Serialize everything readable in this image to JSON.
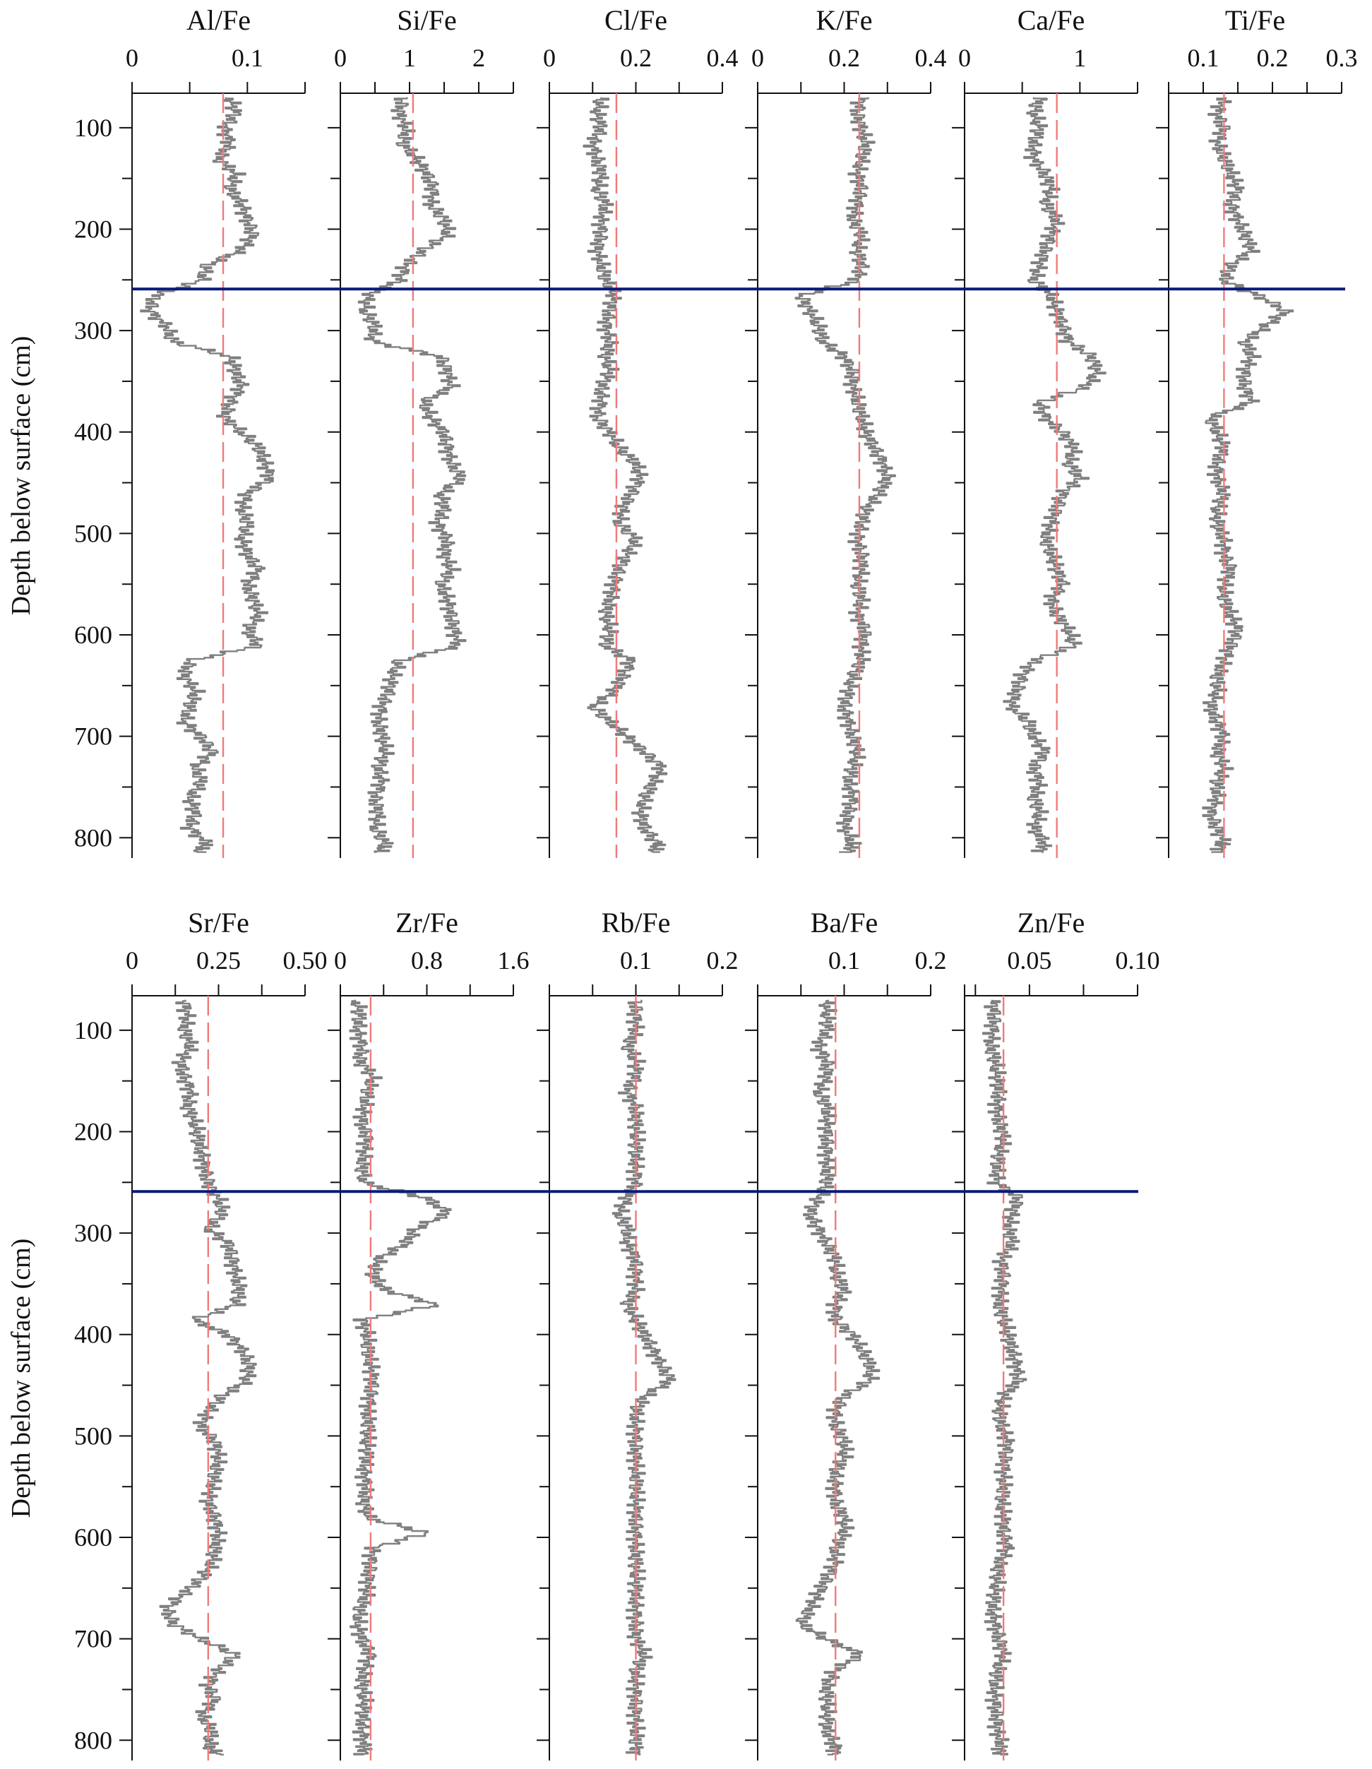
{
  "chart_data": {
    "type": "line",
    "title": "",
    "ylabel": "Depth below surface (cm)",
    "ylim": [
      66,
      820
    ],
    "y_ticks": [
      100,
      200,
      300,
      400,
      500,
      600,
      700,
      800
    ],
    "y_minor_step": 50,
    "boundary_depth_cm": 259,
    "grid": false,
    "legend": null,
    "depths": [
      70,
      85,
      100,
      115,
      130,
      145,
      160,
      175,
      190,
      205,
      220,
      235,
      250,
      265,
      280,
      295,
      310,
      325,
      340,
      355,
      370,
      385,
      400,
      415,
      430,
      445,
      460,
      475,
      490,
      505,
      520,
      535,
      550,
      565,
      580,
      595,
      610,
      625,
      640,
      655,
      670,
      685,
      700,
      715,
      730,
      745,
      760,
      775,
      790,
      805,
      815
    ],
    "rows": [
      {
        "panels": [
          {
            "name": "Al/Fe",
            "xlim": [
              0,
              0.15
            ],
            "ticks": [
              0,
              0.05,
              0.1,
              0.15
            ],
            "tick_labels": [
              "0",
              "",
              "0.1",
              ""
            ],
            "mean": 0.079,
            "values": [
              0.085,
              0.09,
              0.08,
              0.085,
              0.075,
              0.09,
              0.085,
              0.095,
              0.1,
              0.105,
              0.095,
              0.065,
              0.06,
              0.02,
              0.015,
              0.03,
              0.035,
              0.085,
              0.09,
              0.095,
              0.085,
              0.08,
              0.095,
              0.11,
              0.115,
              0.12,
              0.1,
              0.095,
              0.1,
              0.095,
              0.1,
              0.11,
              0.1,
              0.105,
              0.11,
              0.1,
              0.11,
              0.05,
              0.045,
              0.055,
              0.05,
              0.045,
              0.06,
              0.07,
              0.055,
              0.06,
              0.05,
              0.055,
              0.05,
              0.065,
              0.055
            ]
          },
          {
            "name": "Si/Fe",
            "xlim": [
              0,
              2.5
            ],
            "ticks": [
              0,
              0.5,
              1,
              1.5,
              2,
              2.5
            ],
            "tick_labels": [
              "0",
              "",
              "1",
              "",
              "2",
              ""
            ],
            "mean": 1.05,
            "values": [
              0.9,
              0.85,
              0.95,
              0.9,
              1.1,
              1.25,
              1.35,
              1.3,
              1.5,
              1.55,
              1.2,
              0.95,
              0.85,
              0.4,
              0.35,
              0.5,
              0.45,
              1.45,
              1.55,
              1.6,
              1.2,
              1.3,
              1.5,
              1.55,
              1.6,
              1.75,
              1.45,
              1.5,
              1.4,
              1.55,
              1.5,
              1.6,
              1.45,
              1.55,
              1.6,
              1.65,
              1.7,
              0.85,
              0.75,
              0.7,
              0.6,
              0.55,
              0.6,
              0.65,
              0.55,
              0.6,
              0.5,
              0.55,
              0.5,
              0.65,
              0.55
            ]
          },
          {
            "name": "Cl/Fe",
            "xlim": [
              0,
              0.4
            ],
            "ticks": [
              0,
              0.1,
              0.2,
              0.3,
              0.4
            ],
            "tick_labels": [
              "0",
              "",
              "0.2",
              "",
              "0.4"
            ],
            "mean": 0.155,
            "values": [
              0.12,
              0.11,
              0.12,
              0.1,
              0.11,
              0.12,
              0.11,
              0.13,
              0.12,
              0.12,
              0.11,
              0.12,
              0.13,
              0.15,
              0.14,
              0.13,
              0.14,
              0.13,
              0.14,
              0.12,
              0.12,
              0.11,
              0.14,
              0.16,
              0.2,
              0.21,
              0.19,
              0.17,
              0.16,
              0.2,
              0.18,
              0.16,
              0.15,
              0.14,
              0.13,
              0.14,
              0.13,
              0.19,
              0.17,
              0.15,
              0.1,
              0.14,
              0.18,
              0.22,
              0.26,
              0.24,
              0.22,
              0.21,
              0.22,
              0.25,
              0.24
            ]
          },
          {
            "name": "K/Fe",
            "xlim": [
              0,
              0.4
            ],
            "ticks": [
              0,
              0.1,
              0.2,
              0.3,
              0.4
            ],
            "tick_labels": [
              "0",
              "",
              "0.2",
              "",
              "0.4"
            ],
            "mean": 0.235,
            "values": [
              0.24,
              0.23,
              0.24,
              0.25,
              0.24,
              0.23,
              0.24,
              0.23,
              0.22,
              0.24,
              0.23,
              0.24,
              0.23,
              0.1,
              0.12,
              0.14,
              0.15,
              0.2,
              0.22,
              0.22,
              0.23,
              0.24,
              0.25,
              0.27,
              0.29,
              0.3,
              0.28,
              0.25,
              0.24,
              0.23,
              0.24,
              0.24,
              0.23,
              0.24,
              0.23,
              0.25,
              0.24,
              0.24,
              0.22,
              0.21,
              0.2,
              0.21,
              0.22,
              0.23,
              0.22,
              0.21,
              0.22,
              0.21,
              0.2,
              0.22,
              0.21
            ]
          },
          {
            "name": "Ca/Fe",
            "xlim": [
              0,
              1.5
            ],
            "ticks": [
              0,
              0.5,
              1,
              1.5
            ],
            "tick_labels": [
              "0",
              "",
              "1",
              ""
            ],
            "mean": 0.8,
            "values": [
              0.65,
              0.6,
              0.65,
              0.6,
              0.6,
              0.7,
              0.75,
              0.7,
              0.8,
              0.75,
              0.7,
              0.65,
              0.6,
              0.75,
              0.8,
              0.85,
              0.9,
              1.1,
              1.15,
              1.05,
              0.65,
              0.7,
              0.85,
              0.95,
              0.9,
              1.0,
              0.85,
              0.8,
              0.75,
              0.7,
              0.75,
              0.8,
              0.85,
              0.75,
              0.8,
              0.9,
              0.95,
              0.6,
              0.5,
              0.45,
              0.4,
              0.55,
              0.6,
              0.7,
              0.6,
              0.65,
              0.6,
              0.65,
              0.6,
              0.7,
              0.65
            ]
          },
          {
            "name": "Ti/Fe",
            "xlim": [
              0.05,
              0.3
            ],
            "ticks": [
              0.05,
              0.1,
              0.15,
              0.2,
              0.25,
              0.3
            ],
            "tick_labels": [
              "",
              "0.1",
              "",
              "0.2",
              "",
              "0.3"
            ],
            "mean": 0.13,
            "values": [
              0.13,
              0.12,
              0.13,
              0.12,
              0.13,
              0.14,
              0.15,
              0.14,
              0.15,
              0.16,
              0.17,
              0.14,
              0.13,
              0.18,
              0.22,
              0.19,
              0.16,
              0.17,
              0.16,
              0.16,
              0.17,
              0.11,
              0.12,
              0.13,
              0.12,
              0.12,
              0.13,
              0.12,
              0.12,
              0.13,
              0.13,
              0.14,
              0.13,
              0.13,
              0.14,
              0.15,
              0.14,
              0.13,
              0.12,
              0.12,
              0.11,
              0.12,
              0.13,
              0.12,
              0.13,
              0.12,
              0.12,
              0.11,
              0.12,
              0.13,
              0.12
            ]
          }
        ]
      },
      {
        "panels": [
          {
            "name": "Sr/Fe",
            "xlim": [
              0,
              0.5
            ],
            "ticks": [
              0,
              0.125,
              0.25,
              0.375,
              0.5
            ],
            "tick_labels": [
              "0",
              "",
              "0.25",
              "",
              "0.50"
            ],
            "mean": 0.22,
            "values": [
              0.15,
              0.16,
              0.15,
              0.17,
              0.14,
              0.15,
              0.17,
              0.16,
              0.18,
              0.19,
              0.2,
              0.21,
              0.22,
              0.25,
              0.26,
              0.22,
              0.28,
              0.29,
              0.3,
              0.31,
              0.3,
              0.18,
              0.28,
              0.32,
              0.34,
              0.33,
              0.26,
              0.22,
              0.2,
              0.24,
              0.25,
              0.24,
              0.23,
              0.22,
              0.24,
              0.25,
              0.24,
              0.23,
              0.2,
              0.15,
              0.1,
              0.12,
              0.2,
              0.3,
              0.25,
              0.22,
              0.24,
              0.2,
              0.23,
              0.22,
              0.25
            ]
          },
          {
            "name": "Zr/Fe",
            "xlim": [
              0,
              1.6
            ],
            "ticks": [
              0,
              0.4,
              0.8,
              1.2,
              1.6
            ],
            "tick_labels": [
              "0",
              "",
              "0.8",
              "",
              "1.6"
            ],
            "mean": 0.28,
            "values": [
              0.15,
              0.18,
              0.16,
              0.2,
              0.18,
              0.3,
              0.25,
              0.22,
              0.2,
              0.25,
              0.22,
              0.2,
              0.22,
              0.8,
              1.0,
              0.7,
              0.6,
              0.35,
              0.3,
              0.4,
              0.9,
              0.2,
              0.25,
              0.25,
              0.28,
              0.3,
              0.28,
              0.25,
              0.26,
              0.24,
              0.25,
              0.22,
              0.24,
              0.22,
              0.25,
              0.8,
              0.3,
              0.28,
              0.26,
              0.24,
              0.18,
              0.16,
              0.2,
              0.28,
              0.22,
              0.2,
              0.22,
              0.21,
              0.2,
              0.22,
              0.21
            ]
          },
          {
            "name": "Rb/Fe",
            "xlim": [
              0,
              0.2
            ],
            "ticks": [
              0.05,
              0.1,
              0.15,
              0.2
            ],
            "tick_labels": [
              "",
              "0.1",
              "",
              "0.2"
            ],
            "mean": 0.1,
            "values": [
              0.1,
              0.1,
              0.1,
              0.09,
              0.1,
              0.1,
              0.09,
              0.1,
              0.1,
              0.1,
              0.1,
              0.1,
              0.1,
              0.09,
              0.08,
              0.09,
              0.09,
              0.1,
              0.1,
              0.1,
              0.09,
              0.1,
              0.11,
              0.12,
              0.13,
              0.14,
              0.11,
              0.1,
              0.1,
              0.1,
              0.1,
              0.1,
              0.1,
              0.1,
              0.1,
              0.1,
              0.1,
              0.1,
              0.1,
              0.1,
              0.1,
              0.1,
              0.1,
              0.11,
              0.1,
              0.1,
              0.1,
              0.1,
              0.1,
              0.1,
              0.1
            ]
          },
          {
            "name": "Ba/Fe",
            "xlim": [
              0,
              0.2
            ],
            "ticks": [
              0.05,
              0.1,
              0.15,
              0.2
            ],
            "tick_labels": [
              "",
              "0.1",
              "",
              "0.2"
            ],
            "mean": 0.09,
            "values": [
              0.08,
              0.08,
              0.08,
              0.07,
              0.08,
              0.08,
              0.07,
              0.08,
              0.08,
              0.08,
              0.08,
              0.08,
              0.08,
              0.07,
              0.06,
              0.07,
              0.08,
              0.09,
              0.09,
              0.1,
              0.09,
              0.09,
              0.11,
              0.12,
              0.13,
              0.13,
              0.1,
              0.09,
              0.09,
              0.1,
              0.1,
              0.09,
              0.09,
              0.09,
              0.1,
              0.1,
              0.09,
              0.09,
              0.08,
              0.07,
              0.06,
              0.05,
              0.08,
              0.12,
              0.09,
              0.08,
              0.08,
              0.08,
              0.08,
              0.09,
              0.09
            ]
          },
          {
            "name": "Zn/Fe",
            "xlim": [
              0.02,
              0.1
            ],
            "ticks": [
              0.025,
              0.05,
              0.075,
              0.1
            ],
            "tick_labels": [
              "",
              "0.05",
              "",
              "0.10"
            ],
            "mean": 0.038,
            "values": [
              0.033,
              0.034,
              0.033,
              0.032,
              0.034,
              0.035,
              0.036,
              0.035,
              0.036,
              0.038,
              0.036,
              0.035,
              0.035,
              0.045,
              0.042,
              0.04,
              0.042,
              0.037,
              0.038,
              0.037,
              0.036,
              0.038,
              0.04,
              0.042,
              0.044,
              0.045,
              0.038,
              0.036,
              0.037,
              0.04,
              0.039,
              0.038,
              0.038,
              0.037,
              0.038,
              0.038,
              0.04,
              0.036,
              0.035,
              0.034,
              0.033,
              0.034,
              0.036,
              0.038,
              0.035,
              0.034,
              0.034,
              0.035,
              0.035,
              0.037,
              0.036
            ]
          }
        ]
      }
    ]
  },
  "labels": {
    "ylabel": "Depth below surface (cm)"
  }
}
